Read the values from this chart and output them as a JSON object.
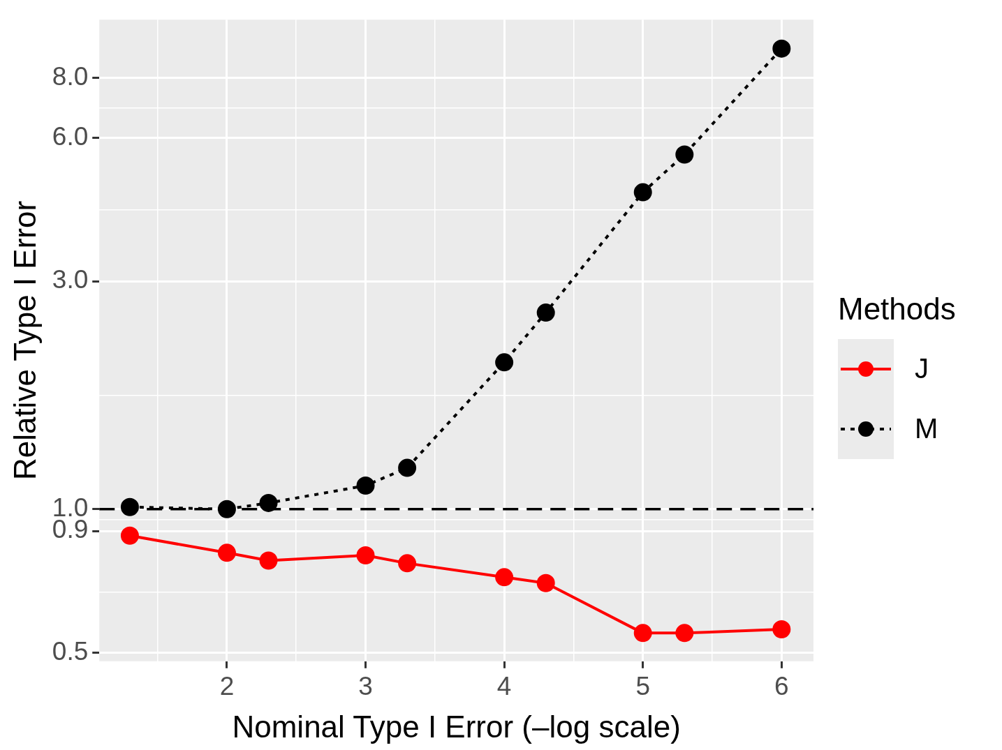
{
  "chart_data": {
    "type": "line",
    "xlabel": "Nominal Type I Error (–log scale)",
    "ylabel": "Relative Type I Error",
    "legend_title": "Methods",
    "x": [
      1.3,
      2,
      2.3,
      3,
      3.3,
      4,
      4.3,
      5,
      5.3,
      6
    ],
    "series": [
      {
        "name": "J",
        "color": "#ff0000",
        "line_style": "solid",
        "values": [
          0.88,
          0.81,
          0.78,
          0.8,
          0.77,
          0.72,
          0.7,
          0.55,
          0.55,
          0.56
        ]
      },
      {
        "name": "M",
        "color": "#000000",
        "line_style": "dotted",
        "values": [
          1.01,
          1.0,
          1.03,
          1.12,
          1.22,
          2.03,
          2.58,
          4.61,
          5.53,
          9.22
        ]
      }
    ],
    "log": "y",
    "xlim": [
      1.08,
      6.23
    ],
    "ylim": [
      0.48,
      10.6
    ],
    "xticks": [
      {
        "value": 1.5,
        "label": null
      },
      2,
      {
        "value": 2.5,
        "label": null
      },
      3,
      {
        "value": 3.5,
        "label": null
      },
      4,
      {
        "value": 4.5,
        "label": null
      },
      5,
      {
        "value": 5.5,
        "label": null
      },
      6
    ],
    "yticks": [
      0.5,
      {
        "value": 0.67,
        "label": null
      },
      {
        "value": 0.9,
        "label": "0.9"
      },
      {
        "value": 0.95,
        "label": null
      },
      {
        "value": 1,
        "label": "1.0"
      },
      {
        "value": 1.73,
        "label": null
      },
      {
        "value": 3,
        "label": "3.0"
      },
      {
        "value": 4.24,
        "label": null
      },
      {
        "value": 6,
        "label": "6.0"
      },
      {
        "value": 6.93,
        "label": null
      },
      {
        "value": 8,
        "label": "8.0"
      }
    ],
    "ref_lines": [
      {
        "axis": "y",
        "value": 1,
        "line_style": "dashed",
        "color": "#000000"
      }
    ],
    "grid": true,
    "legend": "right",
    "marker": "circle"
  }
}
